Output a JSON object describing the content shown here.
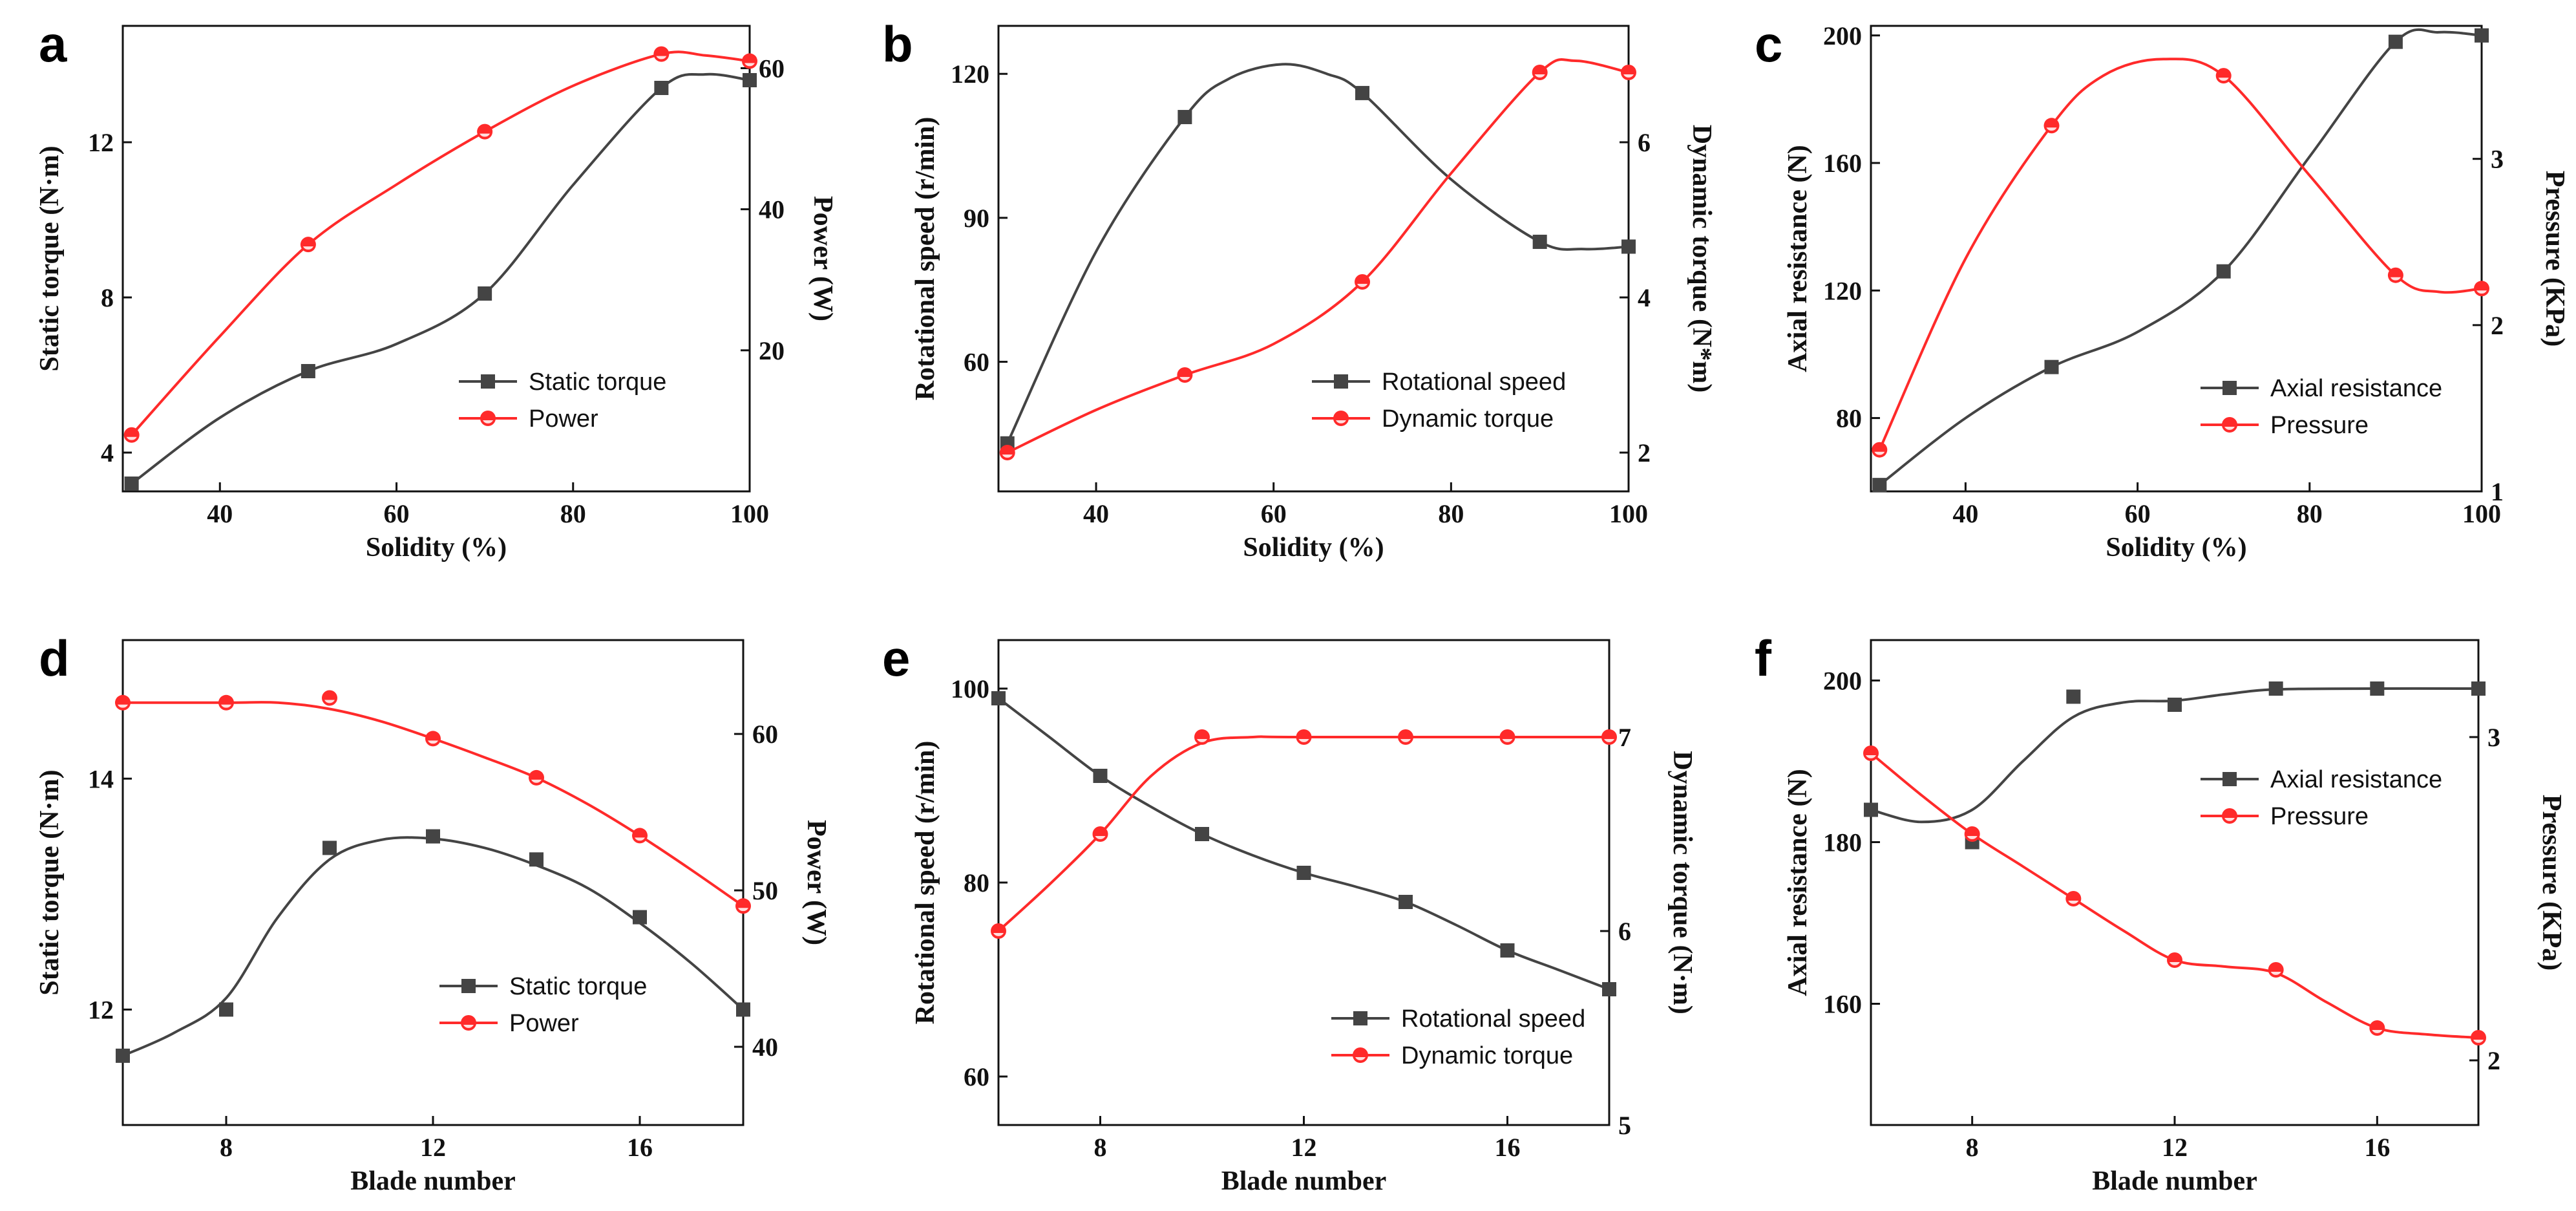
{
  "colors": {
    "series_dark": "#444444",
    "series_red": "#ff2a2a",
    "axis": "#111111"
  },
  "chart_data": [
    {
      "id": "a",
      "panel_label": "a",
      "type": "line",
      "xlabel": "Solidity (%)",
      "xlim": [
        29,
        100
      ],
      "xticks": [
        40,
        60,
        80,
        100
      ],
      "y_left": {
        "label": "Static torque (N·m)",
        "lim": [
          3.0,
          15.0
        ],
        "ticks": [
          4,
          8,
          12
        ]
      },
      "y_right": {
        "label": "Power (W)",
        "lim": [
          0,
          66
        ],
        "ticks": [
          20,
          40,
          60
        ]
      },
      "series": [
        {
          "name": "Static torque",
          "axis": "left",
          "marker": "square",
          "color": "#444444",
          "x": [
            30,
            50,
            70,
            90,
            100
          ],
          "y": [
            3.2,
            6.1,
            8.1,
            13.4,
            13.6
          ],
          "curve": [
            [
              30,
              3.2
            ],
            [
              40,
              4.9
            ],
            [
              50,
              6.1
            ],
            [
              60,
              6.8
            ],
            [
              70,
              8.1
            ],
            [
              80,
              10.9
            ],
            [
              90,
              13.4
            ],
            [
              95,
              13.75
            ],
            [
              100,
              13.6
            ]
          ]
        },
        {
          "name": "Power",
          "axis": "right",
          "marker": "circle",
          "color": "#ff2a2a",
          "x": [
            30,
            50,
            70,
            90,
            100
          ],
          "y": [
            8,
            35,
            51,
            62,
            61
          ],
          "curve": [
            [
              30,
              8
            ],
            [
              40,
              22
            ],
            [
              50,
              35
            ],
            [
              60,
              43.5
            ],
            [
              70,
              51
            ],
            [
              80,
              57.5
            ],
            [
              90,
              62
            ],
            [
              95,
              61.8
            ],
            [
              100,
              61
            ]
          ]
        }
      ],
      "legend": {
        "position": "lower-right"
      }
    },
    {
      "id": "b",
      "panel_label": "b",
      "type": "line",
      "xlabel": "Solidity (%)",
      "xlim": [
        29,
        100
      ],
      "xticks": [
        40,
        60,
        80,
        100
      ],
      "y_left": {
        "label": "Rotational speed (r/min)",
        "lim": [
          33,
          130
        ],
        "ticks": [
          60,
          90,
          120
        ]
      },
      "y_right": {
        "label": "Dynamic torque (N*m)",
        "lim": [
          1.5,
          7.5
        ],
        "ticks": [
          2,
          4,
          6
        ]
      },
      "series": [
        {
          "name": "Rotational speed",
          "axis": "left",
          "marker": "square",
          "color": "#444444",
          "x": [
            30,
            50,
            70,
            90,
            100
          ],
          "y": [
            43,
            111,
            116,
            85,
            84
          ],
          "curve": [
            [
              30,
              43
            ],
            [
              40,
              83
            ],
            [
              50,
              111
            ],
            [
              55,
              119
            ],
            [
              61,
              122
            ],
            [
              66,
              120
            ],
            [
              70,
              116
            ],
            [
              80,
              98
            ],
            [
              90,
              85
            ],
            [
              95,
              83.5
            ],
            [
              100,
              84
            ]
          ]
        },
        {
          "name": "Dynamic torque",
          "axis": "right",
          "marker": "circle",
          "color": "#ff2a2a",
          "x": [
            30,
            50,
            70,
            90,
            100
          ],
          "y": [
            2.0,
            3.0,
            4.2,
            6.9,
            6.9
          ],
          "curve": [
            [
              30,
              2.0
            ],
            [
              40,
              2.55
            ],
            [
              50,
              3.0
            ],
            [
              60,
              3.4
            ],
            [
              70,
              4.2
            ],
            [
              80,
              5.6
            ],
            [
              90,
              6.9
            ],
            [
              94,
              7.05
            ],
            [
              100,
              6.9
            ]
          ]
        }
      ],
      "legend": {
        "position": "lower-right"
      }
    },
    {
      "id": "c",
      "panel_label": "c",
      "type": "line",
      "xlabel": "Solidity (%)",
      "xlim": [
        29,
        100
      ],
      "xticks": [
        40,
        60,
        80,
        100
      ],
      "y_left": {
        "label": "Axial resistance (N)",
        "lim": [
          57,
          203
        ],
        "ticks": [
          80,
          120,
          160,
          200
        ]
      },
      "y_right": {
        "label": "Pressure (KPa)",
        "lim": [
          1,
          3.8
        ],
        "ticks": [
          1,
          2,
          3
        ]
      },
      "series": [
        {
          "name": "Axial resistance",
          "axis": "left",
          "marker": "square",
          "color": "#444444",
          "x": [
            30,
            50,
            70,
            90,
            100
          ],
          "y": [
            59,
            96,
            126,
            198,
            200
          ],
          "curve": [
            [
              30,
              59
            ],
            [
              40,
              80
            ],
            [
              50,
              96
            ],
            [
              60,
              107
            ],
            [
              70,
              126
            ],
            [
              80,
              162
            ],
            [
              90,
              198
            ],
            [
              95,
              201
            ],
            [
              100,
              200
            ]
          ]
        },
        {
          "name": "Pressure",
          "axis": "right",
          "marker": "circle",
          "color": "#ff2a2a",
          "x": [
            30,
            50,
            70,
            90,
            100
          ],
          "y": [
            1.25,
            3.2,
            3.5,
            2.3,
            2.22
          ],
          "curve": [
            [
              30,
              1.25
            ],
            [
              40,
              2.4
            ],
            [
              50,
              3.2
            ],
            [
              56,
              3.5
            ],
            [
              63,
              3.6
            ],
            [
              70,
              3.5
            ],
            [
              80,
              2.9
            ],
            [
              90,
              2.3
            ],
            [
              95,
              2.2
            ],
            [
              100,
              2.22
            ]
          ]
        }
      ],
      "legend": {
        "position": "lower-right"
      }
    },
    {
      "id": "d",
      "panel_label": "d",
      "type": "line",
      "xlabel": "Blade number",
      "xlim": [
        6,
        18
      ],
      "xticks": [
        8,
        12,
        16
      ],
      "y_left": {
        "label": "Static torque (N·m)",
        "lim": [
          11.0,
          15.2
        ],
        "ticks": [
          12,
          14
        ]
      },
      "y_right": {
        "label": "Power (W)",
        "lim": [
          35,
          66
        ],
        "ticks": [
          40,
          50,
          60
        ]
      },
      "series": [
        {
          "name": "Static torque",
          "axis": "left",
          "marker": "square",
          "color": "#444444",
          "x": [
            6,
            8,
            10,
            12,
            14,
            16,
            18
          ],
          "y": [
            11.6,
            12.0,
            13.4,
            13.5,
            13.3,
            12.8,
            12.0
          ],
          "curve": [
            [
              6,
              11.6
            ],
            [
              7,
              11.8
            ],
            [
              8,
              12.1
            ],
            [
              9,
              12.8
            ],
            [
              10,
              13.3
            ],
            [
              11,
              13.47
            ],
            [
              12,
              13.48
            ],
            [
              13,
              13.4
            ],
            [
              14,
              13.25
            ],
            [
              15,
              13.05
            ],
            [
              16,
              12.75
            ],
            [
              17,
              12.4
            ],
            [
              18,
              12.0
            ]
          ]
        },
        {
          "name": "Power",
          "axis": "right",
          "marker": "circle",
          "color": "#ff2a2a",
          "x": [
            6,
            8,
            10,
            12,
            14,
            16,
            18
          ],
          "y": [
            62,
            62,
            62.3,
            59.7,
            57.2,
            53.5,
            49
          ],
          "curve": [
            [
              6,
              62
            ],
            [
              8,
              62
            ],
            [
              9,
              62
            ],
            [
              10,
              61.6
            ],
            [
              11,
              60.8
            ],
            [
              12,
              59.7
            ],
            [
              13,
              58.5
            ],
            [
              14,
              57.2
            ],
            [
              15,
              55.5
            ],
            [
              16,
              53.5
            ],
            [
              17,
              51.3
            ],
            [
              18,
              49
            ]
          ]
        }
      ],
      "legend": {
        "position": "lower-right"
      }
    },
    {
      "id": "e",
      "panel_label": "e",
      "type": "line",
      "xlabel": "Blade number",
      "xlim": [
        6,
        18
      ],
      "xticks": [
        8,
        12,
        16
      ],
      "y_left": {
        "label": "Rotational speed (r/min)",
        "lim": [
          55,
          105
        ],
        "ticks": [
          60,
          80,
          100
        ]
      },
      "y_right": {
        "label": "Dynamic torque (N·m)",
        "lim": [
          5,
          7.5
        ],
        "ticks": [
          5,
          6,
          7
        ]
      },
      "series": [
        {
          "name": "Rotational speed",
          "axis": "left",
          "marker": "square",
          "color": "#444444",
          "x": [
            6,
            8,
            10,
            12,
            14,
            16,
            18
          ],
          "y": [
            99,
            91,
            85,
            81,
            78,
            73,
            69
          ],
          "curve": [
            [
              6,
              99
            ],
            [
              7,
              95
            ],
            [
              8,
              91
            ],
            [
              9,
              87.8
            ],
            [
              10,
              85
            ],
            [
              11,
              82.8
            ],
            [
              12,
              81
            ],
            [
              13,
              79.6
            ],
            [
              14,
              78
            ],
            [
              15,
              75.6
            ],
            [
              16,
              73
            ],
            [
              17,
              71
            ],
            [
              18,
              69
            ]
          ]
        },
        {
          "name": "Dynamic torque",
          "axis": "right",
          "marker": "circle",
          "color": "#ff2a2a",
          "x": [
            6,
            8,
            10,
            12,
            14,
            16,
            18
          ],
          "y": [
            6.0,
            6.5,
            7.0,
            7.0,
            7.0,
            7.0,
            7.0
          ],
          "curve": [
            [
              6,
              6.0
            ],
            [
              7,
              6.24
            ],
            [
              8,
              6.5
            ],
            [
              9,
              6.8
            ],
            [
              10,
              6.97
            ],
            [
              11,
              7.0
            ],
            [
              12,
              7.0
            ],
            [
              18,
              7.0
            ]
          ]
        }
      ],
      "legend": {
        "position": "lower-right"
      }
    },
    {
      "id": "f",
      "panel_label": "f",
      "type": "line",
      "xlabel": "Blade number",
      "xlim": [
        6,
        18
      ],
      "xticks": [
        8,
        12,
        16
      ],
      "y_left": {
        "label": "Axial resistance (N)",
        "lim": [
          145,
          205
        ],
        "ticks": [
          160,
          180,
          200
        ]
      },
      "y_right": {
        "label": "Pressure (KPa)",
        "lim": [
          1.8,
          3.3
        ],
        "ticks": [
          2,
          3
        ]
      },
      "series": [
        {
          "name": "Axial resistance",
          "axis": "left",
          "marker": "square",
          "color": "#444444",
          "x": [
            6,
            8,
            10,
            12,
            14,
            16,
            18
          ],
          "y": [
            184,
            180,
            198,
            197,
            199,
            199,
            199
          ],
          "curve": [
            [
              6,
              184
            ],
            [
              7,
              182.5
            ],
            [
              8,
              184
            ],
            [
              9,
              190
            ],
            [
              10,
              195.5
            ],
            [
              11,
              197.3
            ],
            [
              12,
              197.5
            ],
            [
              13,
              198.3
            ],
            [
              14,
              198.9
            ],
            [
              16,
              199
            ],
            [
              18,
              199
            ]
          ]
        },
        {
          "name": "Pressure",
          "axis": "right",
          "marker": "circle",
          "color": "#ff2a2a",
          "x": [
            6,
            8,
            10,
            12,
            14,
            16,
            18
          ],
          "y": [
            2.95,
            2.7,
            2.5,
            2.31,
            2.28,
            2.1,
            2.07
          ],
          "curve": [
            [
              6,
              2.95
            ],
            [
              7,
              2.82
            ],
            [
              8,
              2.7
            ],
            [
              9,
              2.6
            ],
            [
              10,
              2.5
            ],
            [
              11,
              2.4
            ],
            [
              12,
              2.31
            ],
            [
              13,
              2.29
            ],
            [
              14,
              2.27
            ],
            [
              15,
              2.18
            ],
            [
              16,
              2.1
            ],
            [
              17,
              2.08
            ],
            [
              18,
              2.07
            ]
          ]
        }
      ],
      "legend": {
        "position": "lower-right"
      }
    }
  ]
}
